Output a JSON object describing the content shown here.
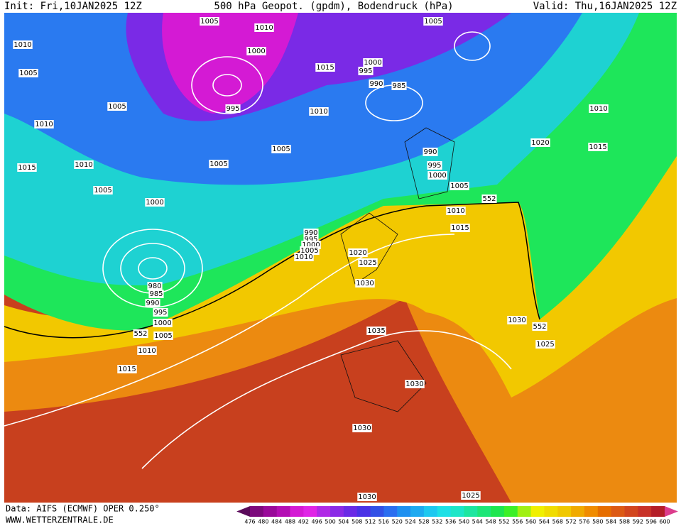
{
  "header": {
    "init": "Init: Fri,10JAN2025 12Z",
    "title": "500 hPa Geopot. (gpdm), Bodendruck (hPa)",
    "valid": "Valid: Thu,16JAN2025 12Z"
  },
  "isobars": [
    "1005",
    "1010",
    "1005",
    "1010",
    "1000",
    "1005",
    "1015",
    "1000",
    "995",
    "990",
    "985",
    "995",
    "1005",
    "1010",
    "1010",
    "1010",
    "1020",
    "1015",
    "1005",
    "990",
    "995",
    "1000",
    "1015",
    "1010",
    "1005",
    "1005",
    "1005",
    "552",
    "1000",
    "1010",
    "1015",
    "990",
    "995",
    "1000",
    "1005",
    "1010",
    "1020",
    "1025",
    "1030",
    "980",
    "985",
    "990",
    "995",
    "1000",
    "552",
    "1005",
    "1010",
    "1015",
    "1035",
    "1030",
    "552",
    "1025",
    "1030",
    "1030",
    "1030",
    "1025"
  ],
  "colorbar": {
    "levels": [
      476,
      480,
      484,
      488,
      492,
      496,
      500,
      504,
      508,
      512,
      516,
      520,
      524,
      528,
      532,
      536,
      540,
      544,
      548,
      552,
      556,
      560,
      564,
      568,
      572,
      576,
      580,
      584,
      588,
      592,
      596,
      600
    ],
    "colors": [
      "#5a0a5a",
      "#7d0a7d",
      "#9a0a9a",
      "#b40fb4",
      "#d41ad4",
      "#e025e6",
      "#b02ae6",
      "#8a2ae6",
      "#6a2ae6",
      "#4a32e6",
      "#3250e6",
      "#2a6ef0",
      "#1e90f0",
      "#1eaaf0",
      "#1ec8f0",
      "#1ee0e6",
      "#1ee6c8",
      "#1ee6a0",
      "#1ee678",
      "#1ee650",
      "#3cf028",
      "#a0f014",
      "#f0f000",
      "#f0dc00",
      "#f0c800",
      "#f0aa00",
      "#f08c00",
      "#e66e00",
      "#dc5a14",
      "#d2461e",
      "#c83228",
      "#b41e28",
      "#dc3c8c"
    ]
  },
  "footer": {
    "source": "Data: AIFS (ECMWF) OPER 0.250°",
    "site": "WWW.WETTERZENTRALE.DE"
  }
}
